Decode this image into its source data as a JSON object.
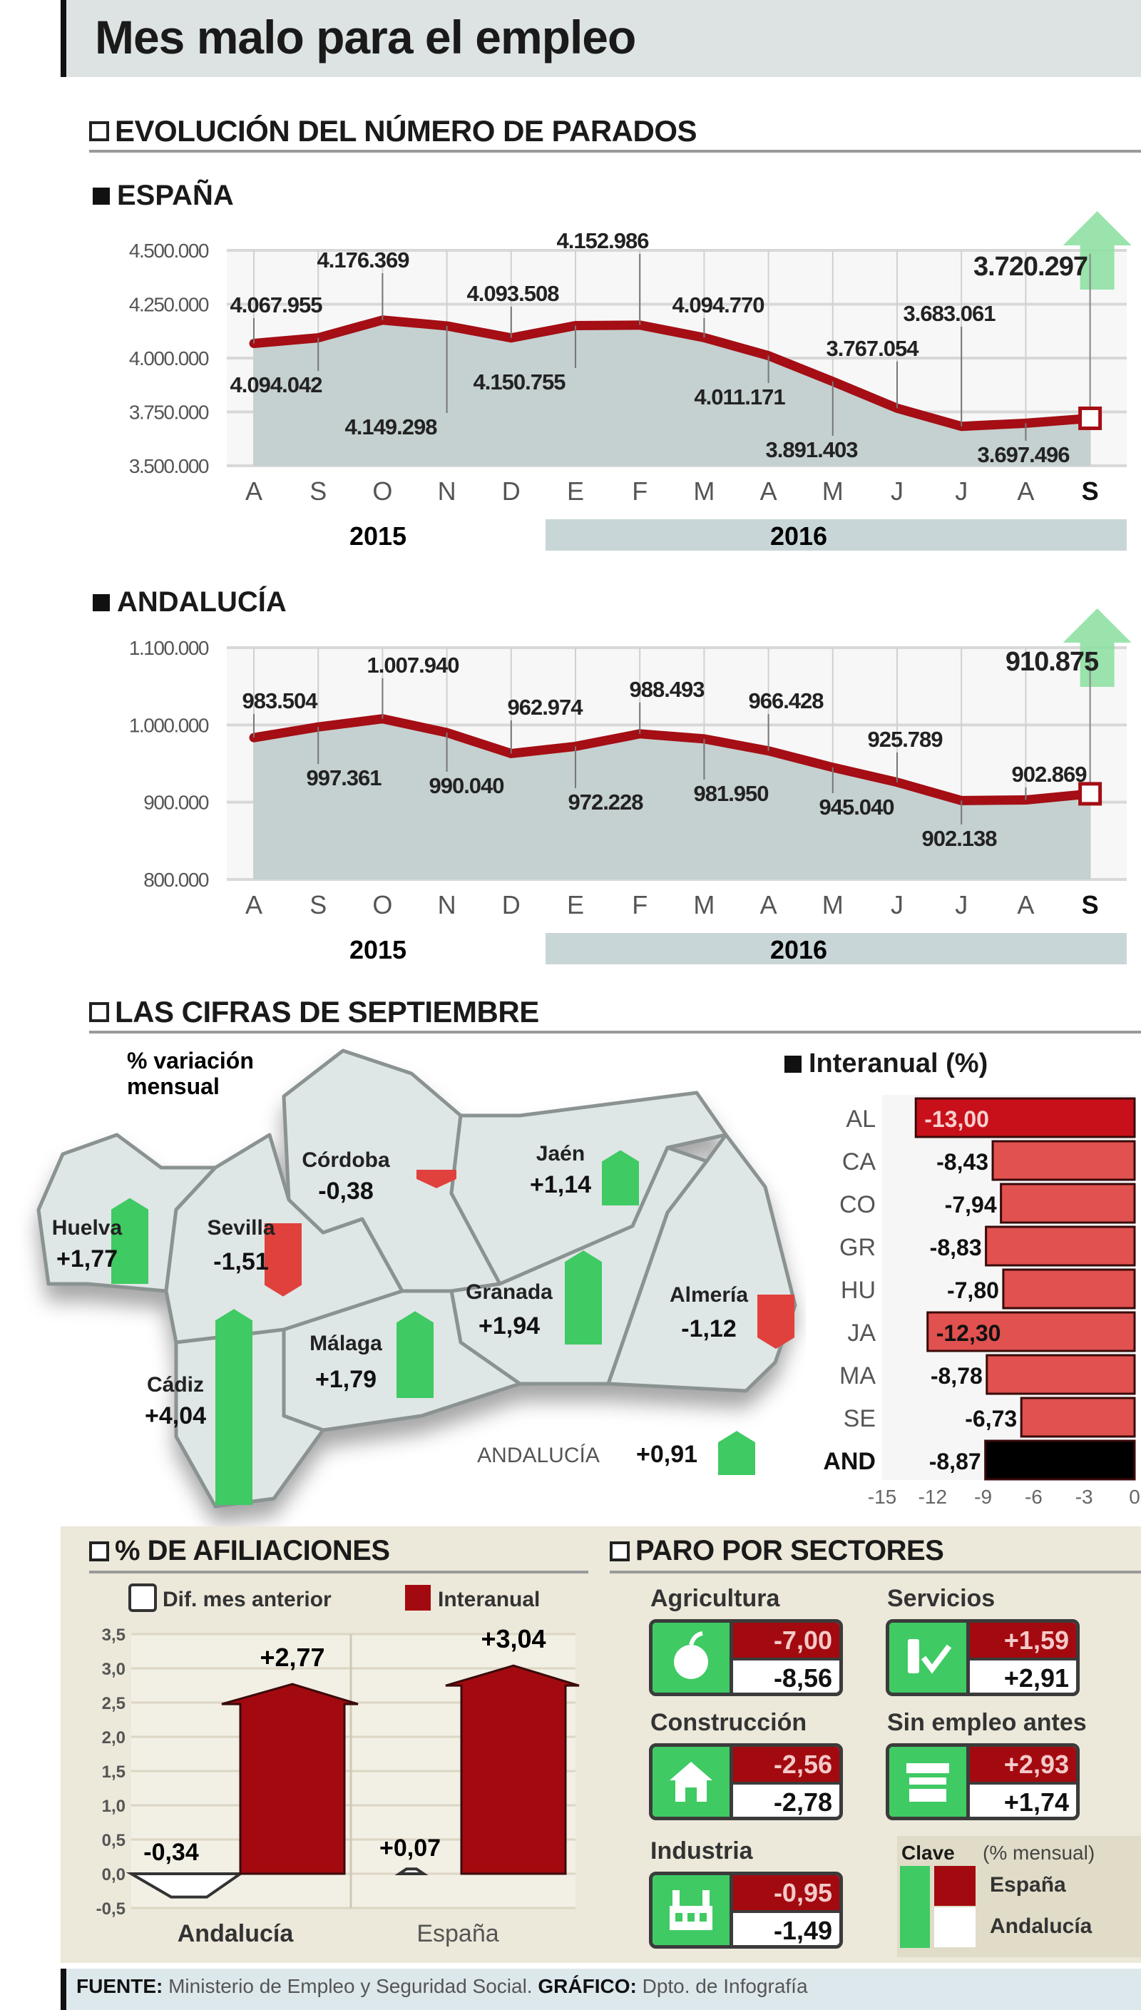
{
  "title": "Mes malo para el empleo",
  "section_evolucion": "EVOLUCIÓN DEL NÚMERO DE PARADOS",
  "section_cifras": "LAS CIFRAS DE SEPTIEMBRE",
  "section_afiliaciones": "% DE AFILIACIONES",
  "section_sectores": "PARO POR SECTORES",
  "colors": {
    "line": "#a40e14",
    "area": "#c5d0d0",
    "up": "#3fca63",
    "down": "#e0413c",
    "dark_red": "#a30a0f",
    "black": "#000000"
  },
  "chart_data": [
    {
      "type": "line",
      "title": "ESPAÑA",
      "categories": [
        "A",
        "S",
        "O",
        "N",
        "D",
        "E",
        "F",
        "M",
        "A",
        "M",
        "J",
        "J",
        "A",
        "S"
      ],
      "years": [
        "2015",
        "2016"
      ],
      "values": [
        4067955,
        4094042,
        4176369,
        4149298,
        4093508,
        4150755,
        4152986,
        4094770,
        4011171,
        3891403,
        3767054,
        3683061,
        3697496,
        3720297
      ],
      "value_labels": [
        "4.067.955",
        "4.094.042",
        "4.176.369",
        "4.149.298",
        "4.093.508",
        "4.150.755",
        "4.152.986",
        "4.094.770",
        "4.011.171",
        "3.891.403",
        "3.767.054",
        "3.683.061",
        "3.697.496",
        "3.720.297"
      ],
      "yticks": [
        4500000,
        4250000,
        4000000,
        3750000,
        3500000
      ],
      "ytick_labels": [
        "4.500.000",
        "4.250.000",
        "4.000.000",
        "3.750.000",
        "3.500.000"
      ],
      "ylim": [
        3500000,
        4500000
      ],
      "grid": true,
      "last_change": "up"
    },
    {
      "type": "line",
      "title": "ANDALUCÍA",
      "categories": [
        "A",
        "S",
        "O",
        "N",
        "D",
        "E",
        "F",
        "M",
        "A",
        "M",
        "J",
        "J",
        "A",
        "S"
      ],
      "years": [
        "2015",
        "2016"
      ],
      "values": [
        983504,
        997361,
        1007940,
        990040,
        962974,
        972228,
        988493,
        981950,
        966428,
        945040,
        925789,
        902138,
        902869,
        910875
      ],
      "value_labels": [
        "983.504",
        "997.361",
        "1.007.940",
        "990.040",
        "962.974",
        "972.228",
        "988.493",
        "981.950",
        "966.428",
        "945.040",
        "925.789",
        "902.138",
        "902.869",
        "910.875"
      ],
      "yticks": [
        1100000,
        1000000,
        900000,
        800000
      ],
      "ytick_labels": [
        "1.100.000",
        "1.000.000",
        "900.000",
        "800.000"
      ],
      "ylim": [
        800000,
        1100000
      ],
      "grid": true,
      "last_change": "up"
    },
    {
      "type": "bar",
      "title": "% variación mensual",
      "title_line1": "% variación",
      "title_line2": "mensual",
      "categories": [
        "Huelva",
        "Sevilla",
        "Córdoba",
        "Jaén",
        "Granada",
        "Almería",
        "Málaga",
        "Cádiz",
        "ANDALUCÍA"
      ],
      "values": [
        1.77,
        -1.51,
        -0.38,
        1.14,
        1.94,
        -1.12,
        1.79,
        4.04,
        0.91
      ],
      "value_labels": [
        "+1,77",
        "-1,51",
        "-0,38",
        "+1,14",
        "+1,94",
        "-1,12",
        "+1,79",
        "+4,04",
        "+0,91"
      ]
    },
    {
      "type": "bar",
      "title": "Interanual (%)",
      "categories": [
        "AL",
        "CA",
        "CO",
        "GR",
        "HU",
        "JA",
        "MA",
        "SE",
        "AND"
      ],
      "values": [
        -13.0,
        -8.43,
        -7.94,
        -8.83,
        -7.8,
        -12.3,
        -8.78,
        -6.73,
        -8.87
      ],
      "value_labels": [
        "-13,00",
        "-8,43",
        "-7,94",
        "-8,83",
        "-7,80",
        "-12,30",
        "-8,78",
        "-6,73",
        "-8,87"
      ],
      "xticks": [
        "-15",
        "-12",
        "-9",
        "-6",
        "-3",
        "0"
      ],
      "xlim": [
        -15,
        0
      ]
    },
    {
      "type": "bar",
      "title": "% DE AFILIACIONES",
      "categories": [
        "Andalucía",
        "España"
      ],
      "series": [
        {
          "name": "Dif. mes anterior",
          "values": [
            -0.34,
            0.07
          ],
          "labels": [
            "-0,34",
            "+0,07"
          ],
          "color": "#ffffff"
        },
        {
          "name": "Interanual",
          "values": [
            2.77,
            3.04
          ],
          "labels": [
            "+2,77",
            "+3,04"
          ],
          "color": "#a30a0f"
        }
      ],
      "yticks": [
        "3,5",
        "3,0",
        "2,5",
        "2,0",
        "1,5",
        "1,0",
        "0,5",
        "0,0",
        "-0,5"
      ],
      "ylim": [
        -0.5,
        3.5
      ],
      "legend": "top"
    }
  ],
  "sectores": {
    "items": [
      {
        "name": "Agricultura",
        "icon": "apple-icon",
        "espana": "-7,00",
        "andalucia": "-8,56"
      },
      {
        "name": "Servicios",
        "icon": "services-icon",
        "espana": "+1,59",
        "andalucia": "+2,91"
      },
      {
        "name": "Construcción",
        "icon": "house-icon",
        "espana": "-2,56",
        "andalucia": "-2,78"
      },
      {
        "name": "Sin empleo antes",
        "icon": "shop-icon",
        "espana": "+2,93",
        "andalucia": "+1,74"
      },
      {
        "name": "Industria",
        "icon": "factory-icon",
        "espana": "-0,95",
        "andalucia": "-1,49"
      }
    ],
    "clave": "Clave",
    "clave_unit": "(% mensual)",
    "clave_espana": "España",
    "clave_andalucia": "Andalucía"
  },
  "footer": {
    "fuente_label": "FUENTE:",
    "fuente": "Ministerio de Empleo y Seguridad Social.",
    "grafico_label": "GRÁFICO:",
    "grafico": "Dpto. de Infografía"
  }
}
